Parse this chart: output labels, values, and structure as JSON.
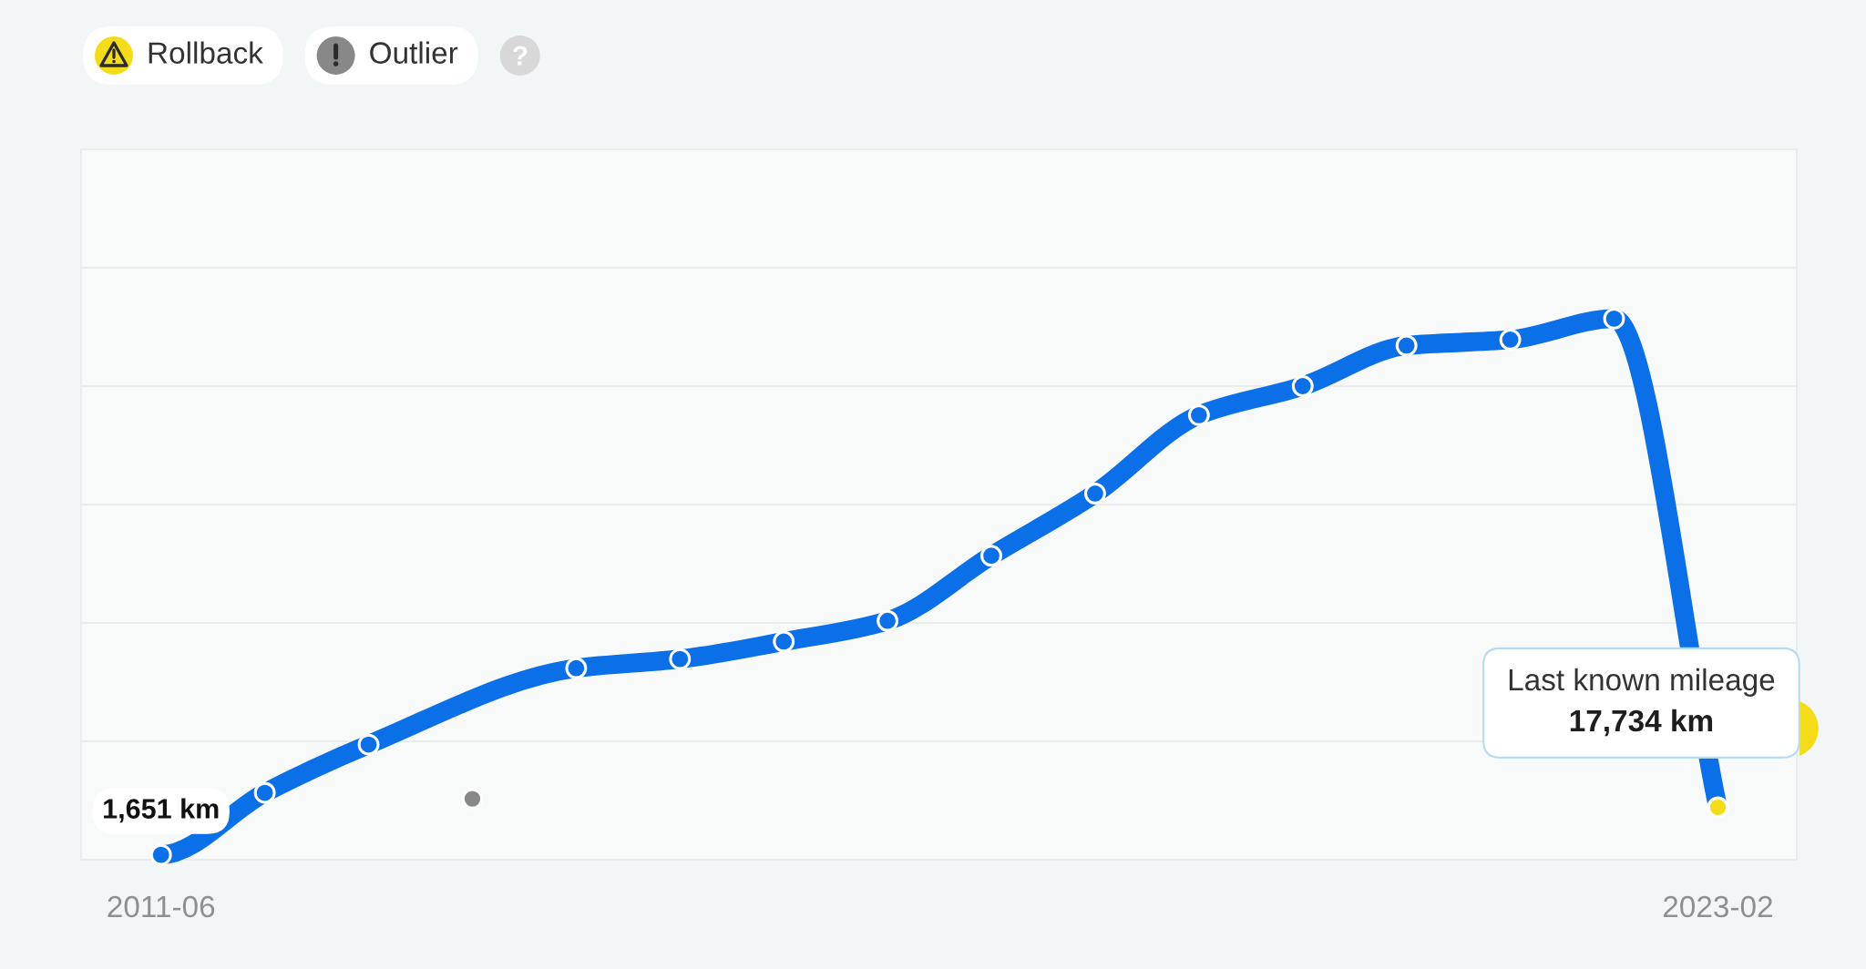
{
  "chart_data": {
    "type": "line",
    "categories": [
      "2011-06",
      null,
      null,
      null,
      null,
      null,
      null,
      null,
      null,
      null,
      null,
      null,
      null,
      null,
      null,
      "2023-02"
    ],
    "series": [
      {
        "type": "line",
        "color": "#0b6fe8",
        "values": [
          1651,
          22600,
          38900,
          null,
          64700,
          67800,
          73700,
          80700,
          102700,
          123700,
          150200,
          160000,
          173700,
          175700,
          182800,
          17734
        ],
        "value_labels": [
          "1,651 km",
          null,
          null,
          null,
          null,
          null,
          null,
          null,
          null,
          null,
          null,
          null,
          null,
          null,
          null,
          "17,734 km"
        ]
      },
      {
        "name": "Rollback",
        "type": "scatter",
        "color": "#f5dc1a",
        "values": [
          null,
          null,
          null,
          null,
          null,
          null,
          null,
          null,
          null,
          null,
          null,
          null,
          null,
          null,
          null,
          17734
        ]
      },
      {
        "name": "Outlier",
        "type": "scatter",
        "color": "#888888",
        "values": [
          null,
          null,
          null,
          20600,
          null,
          null,
          null,
          null,
          null,
          null,
          null,
          null,
          null,
          null,
          null,
          null
        ]
      }
    ],
    "ylim": [
      0,
      240000
    ],
    "yticks": [
      {
        "value": 0,
        "label": null
      },
      {
        "value": 40000,
        "label": null
      },
      {
        "value": 80000,
        "label": null
      },
      {
        "value": 120000,
        "label": null
      },
      {
        "value": 160000,
        "label": null
      },
      {
        "value": 200000,
        "label": null
      },
      {
        "value": 240000,
        "label": null
      }
    ],
    "grid": "y",
    "legend": "top left",
    "tick_labels": "x",
    "marker": "circle",
    "annotations": [
      "Last known mileage"
    ]
  }
}
